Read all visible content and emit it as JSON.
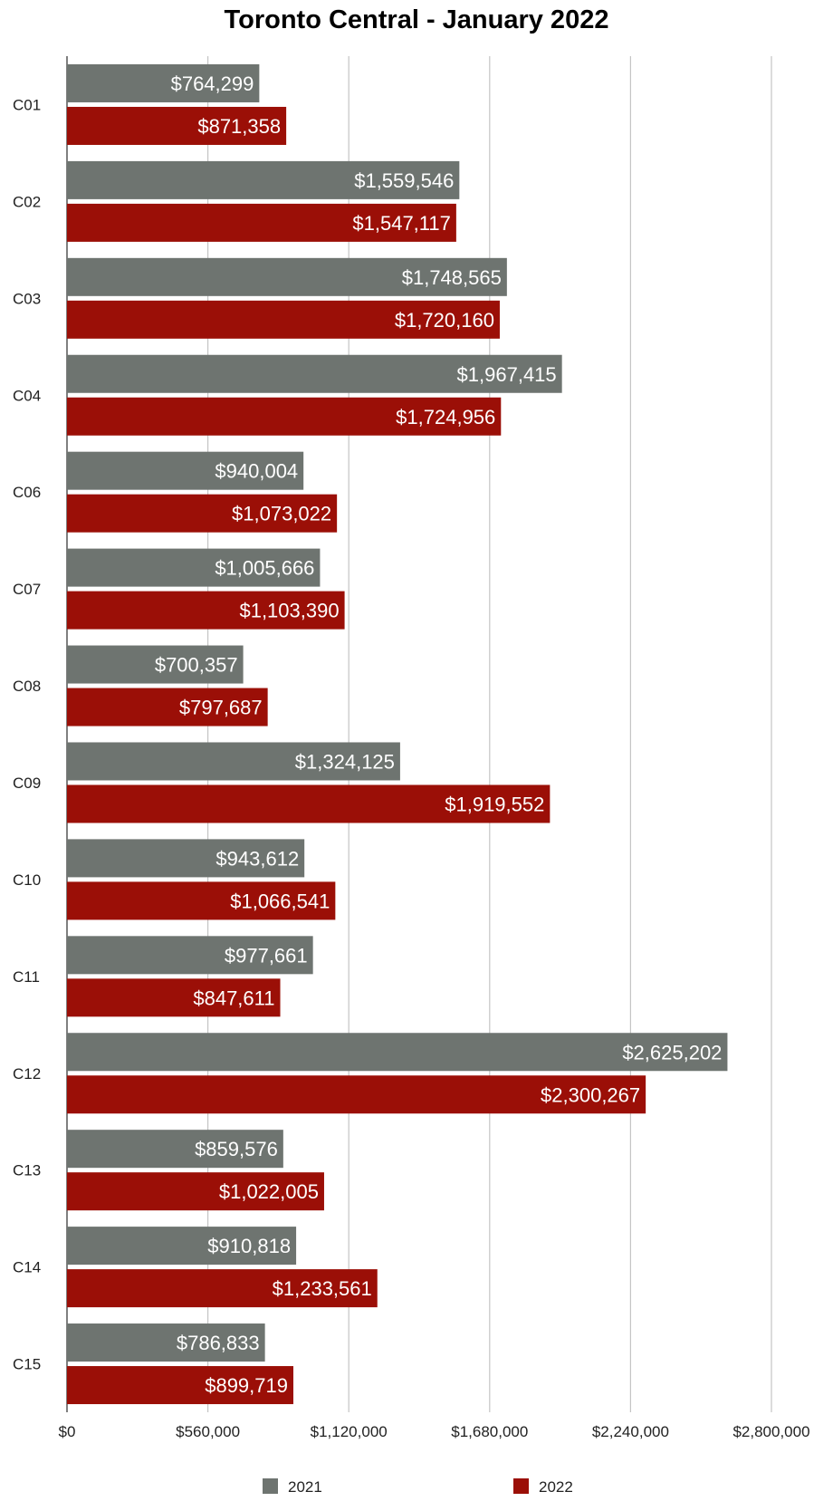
{
  "chart_data": {
    "type": "bar",
    "orientation": "horizontal",
    "title": "Toronto Central - January 2022",
    "categories": [
      "C01",
      "C02",
      "C03",
      "C04",
      "C06",
      "C07",
      "C08",
      "C09",
      "C10",
      "C11",
      "C12",
      "C13",
      "C14",
      "C15"
    ],
    "series": [
      {
        "name": "2021",
        "color": "#6e7470",
        "values": [
          764299,
          1559546,
          1748565,
          1967415,
          940004,
          1005666,
          700357,
          1324125,
          943612,
          977661,
          2625202,
          859576,
          910818,
          786833
        ],
        "labels": [
          "$764,299",
          "$1,559,546",
          "$1,748,565",
          "$1,967,415",
          "$940,004",
          "$1,005,666",
          "$700,357",
          "$1,324,125",
          "$943,612",
          "$977,661",
          "$2,625,202",
          "$859,576",
          "$910,818",
          "$786,833"
        ]
      },
      {
        "name": "2022",
        "color": "#9b0f07",
        "values": [
          871358,
          1547117,
          1720160,
          1724956,
          1073022,
          1103390,
          797687,
          1919552,
          1066541,
          847611,
          2300267,
          1022005,
          1233561,
          899719
        ],
        "labels": [
          "$871,358",
          "$1,547,117",
          "$1,720,160",
          "$1,724,956",
          "$1,073,022",
          "$1,103,390",
          "$797,687",
          "$1,919,552",
          "$1,066,541",
          "$847,611",
          "$2,300,267",
          "$1,022,005",
          "$1,233,561",
          "$899,719"
        ]
      }
    ],
    "xlim": [
      0,
      2800000
    ],
    "xticks": [
      0,
      560000,
      1120000,
      1680000,
      2240000,
      2800000
    ],
    "xtick_labels": [
      "$0",
      "$560,000",
      "$1,120,000",
      "$1,680,000",
      "$2,240,000",
      "$2,800,000"
    ],
    "grid": true,
    "legend_position": "bottom"
  }
}
